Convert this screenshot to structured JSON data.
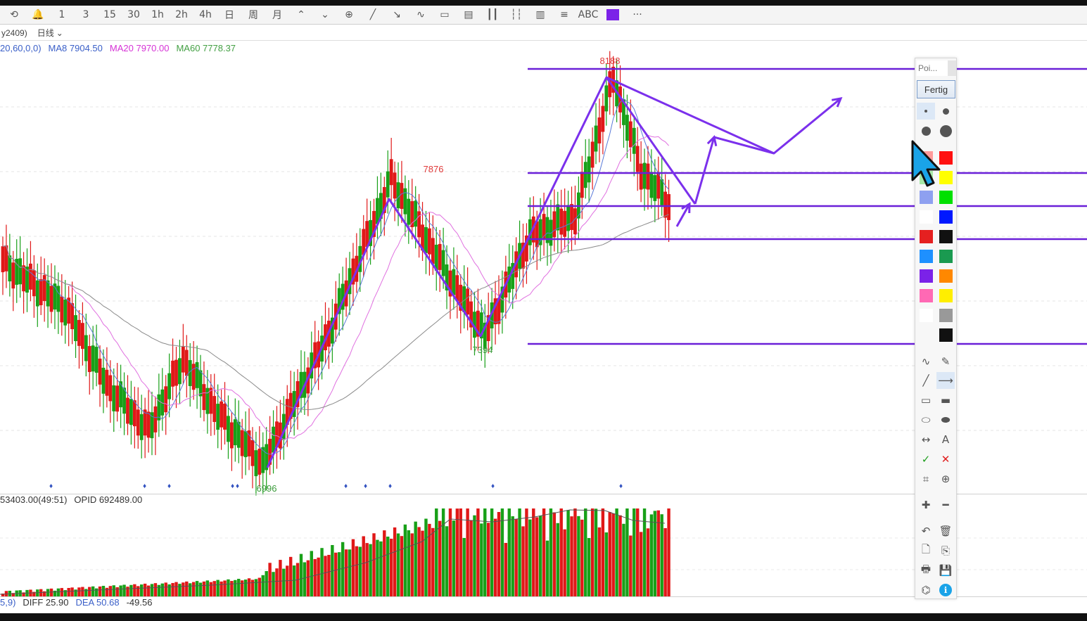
{
  "toolbar": {
    "items": [
      "⟲",
      "🔔",
      "1",
      "3",
      "15",
      "30",
      "1h",
      "2h",
      "4h",
      "日",
      "周",
      "月",
      "⌃",
      "⌄",
      "⊕",
      "╱",
      "↘",
      "∿",
      "▭",
      "▤",
      "┃┃",
      "┆┆",
      "▥",
      "≡",
      "ABC",
      "",
      "···"
    ],
    "accent_color": "#7b22e8"
  },
  "subbar": {
    "contract": "y2409)",
    "period": "日线",
    "period_arrow": "⌄"
  },
  "ma_legend": {
    "params": "20,60,0,0)",
    "ma8": "MA8 7904.50",
    "ma20": "MA20 7970.00",
    "ma60": "MA60 7778.37",
    "colors": {
      "params": "#3a5fc8",
      "ma8": "#3a5fc8",
      "ma20": "#d633d6",
      "ma60": "#44a044"
    }
  },
  "price_labels": {
    "high_main": "8188",
    "high_left": "7876",
    "low_mid": "7394",
    "low_left": "6996",
    "color_high": "#e03a3a",
    "color_low": "#3a9a3a"
  },
  "vol_legend": {
    "vol": "53403.00(49:51)",
    "opid": "OPID 692489.00"
  },
  "macd_legend": {
    "params": "5,9)",
    "diff": "DIFF 25.90",
    "dea": "DEA 50.68",
    "macd": "-49.56"
  },
  "palette": {
    "input_placeholder": "Poi...",
    "done_label": "Fertig",
    "sizes": [
      "small-dot",
      "medium-dot",
      "large-dot",
      "xlarge-dot"
    ],
    "colors_left": [
      "#ff9a9a",
      "#a6e8a6",
      "#8ea0f0",
      "#ffffff",
      "#e52020",
      "#1e90ff",
      "#7b22e8",
      "#ff69b4",
      "#ffffff"
    ],
    "colors_right": [
      "#ff1010",
      "#ffff00",
      "#00e000",
      "#0018ff",
      "#111111",
      "#1a9a50",
      "#ff8800",
      "#ffee00",
      "#999999",
      "#111111"
    ],
    "tools": [
      [
        "∿",
        "✎"
      ],
      [
        "╱",
        "⟶"
      ],
      [
        "▭",
        "▬"
      ],
      [
        "⬭",
        "⬬"
      ],
      [
        "↔",
        "A"
      ],
      [
        "✓",
        "✕"
      ],
      [
        "⌗",
        "⊕"
      ],
      [
        "✚",
        "━"
      ],
      [
        "↶",
        "🗑"
      ],
      [
        "🗋",
        "⎘"
      ],
      [
        "🖶",
        "💾"
      ],
      [
        "⌬",
        "ℹ"
      ]
    ]
  },
  "chart_data": {
    "type": "candlestick",
    "title": "",
    "horizontal_levels": [
      8188,
      7876,
      7760,
      7610,
      7394
    ],
    "annotations": [
      "8188",
      "7876",
      "7394",
      "6996"
    ],
    "swing_points": [
      6996,
      7876,
      7394,
      8188
    ]
  }
}
